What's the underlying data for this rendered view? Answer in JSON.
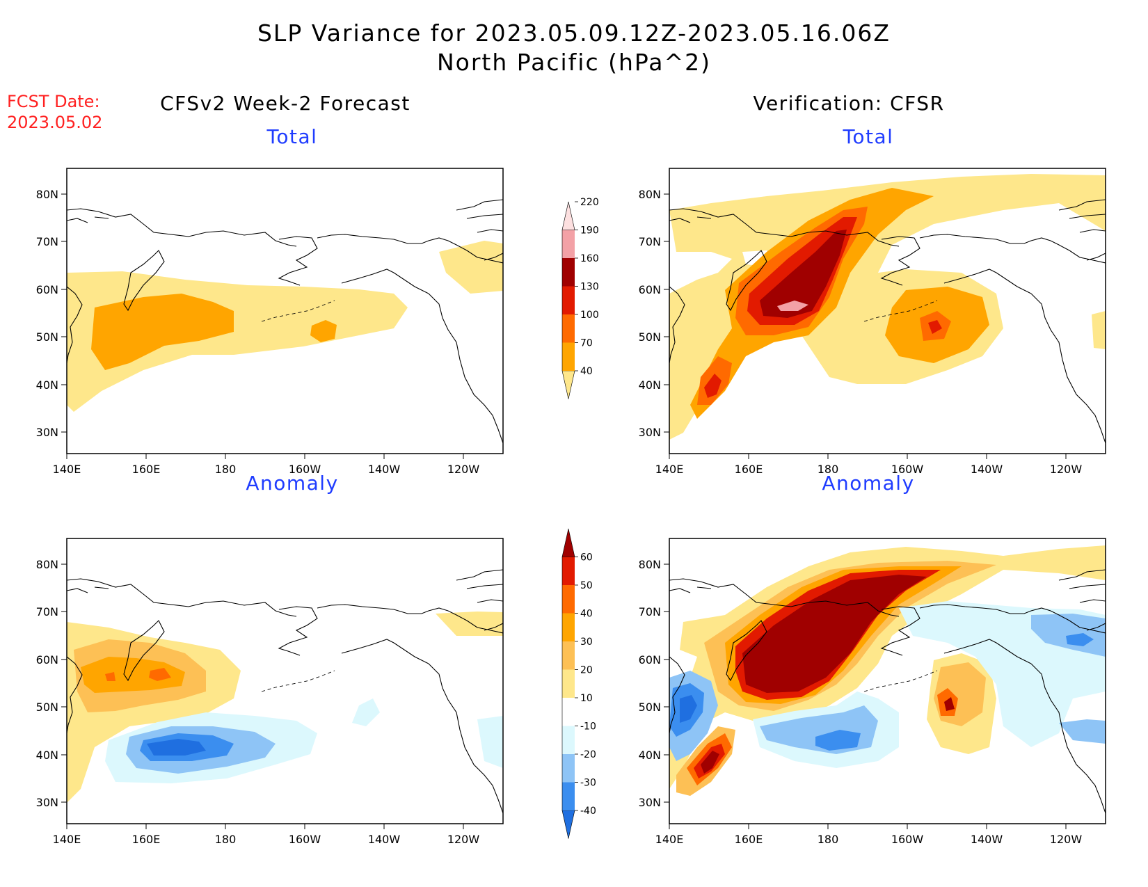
{
  "title": {
    "line1": "SLP Variance for 2023.05.09.12Z-2023.05.16.06Z",
    "line2": "North Pacific (hPa^2)"
  },
  "fcst_date": {
    "label": "FCST Date:",
    "value": "2023.05.02"
  },
  "columns": {
    "left": "CFSv2 Week-2 Forecast",
    "right": "Verification: CFSR"
  },
  "panels": {
    "top_left": "Total",
    "top_right": "Total",
    "bottom_left": "Anomaly",
    "bottom_right": "Anomaly"
  },
  "axes": {
    "lon_labels": [
      "140E",
      "160E",
      "180",
      "160W",
      "140W",
      "120W"
    ],
    "lat_labels": [
      "80N",
      "70N",
      "60N",
      "50N",
      "40N",
      "30N"
    ]
  },
  "colorbars": {
    "total": {
      "levels": [
        "40",
        "70",
        "100",
        "130",
        "160",
        "190",
        "220"
      ],
      "colors": [
        "#fee78b",
        "#ffa500",
        "#ff6a00",
        "#e21a00",
        "#a00000",
        "#f3a1a6",
        "#fde0e0"
      ]
    },
    "anomaly": {
      "levels": [
        "-40",
        "-30",
        "-20",
        "-10",
        "10",
        "20",
        "30",
        "40",
        "50",
        "60"
      ],
      "colors": [
        "#1f6fe0",
        "#3b8eef",
        "#8ec4f6",
        "#dcf8fd",
        "#ffffff",
        "#fee78b",
        "#fdc055",
        "#ffa500",
        "#ff6a00",
        "#e21a00",
        "#a00000"
      ]
    }
  }
}
